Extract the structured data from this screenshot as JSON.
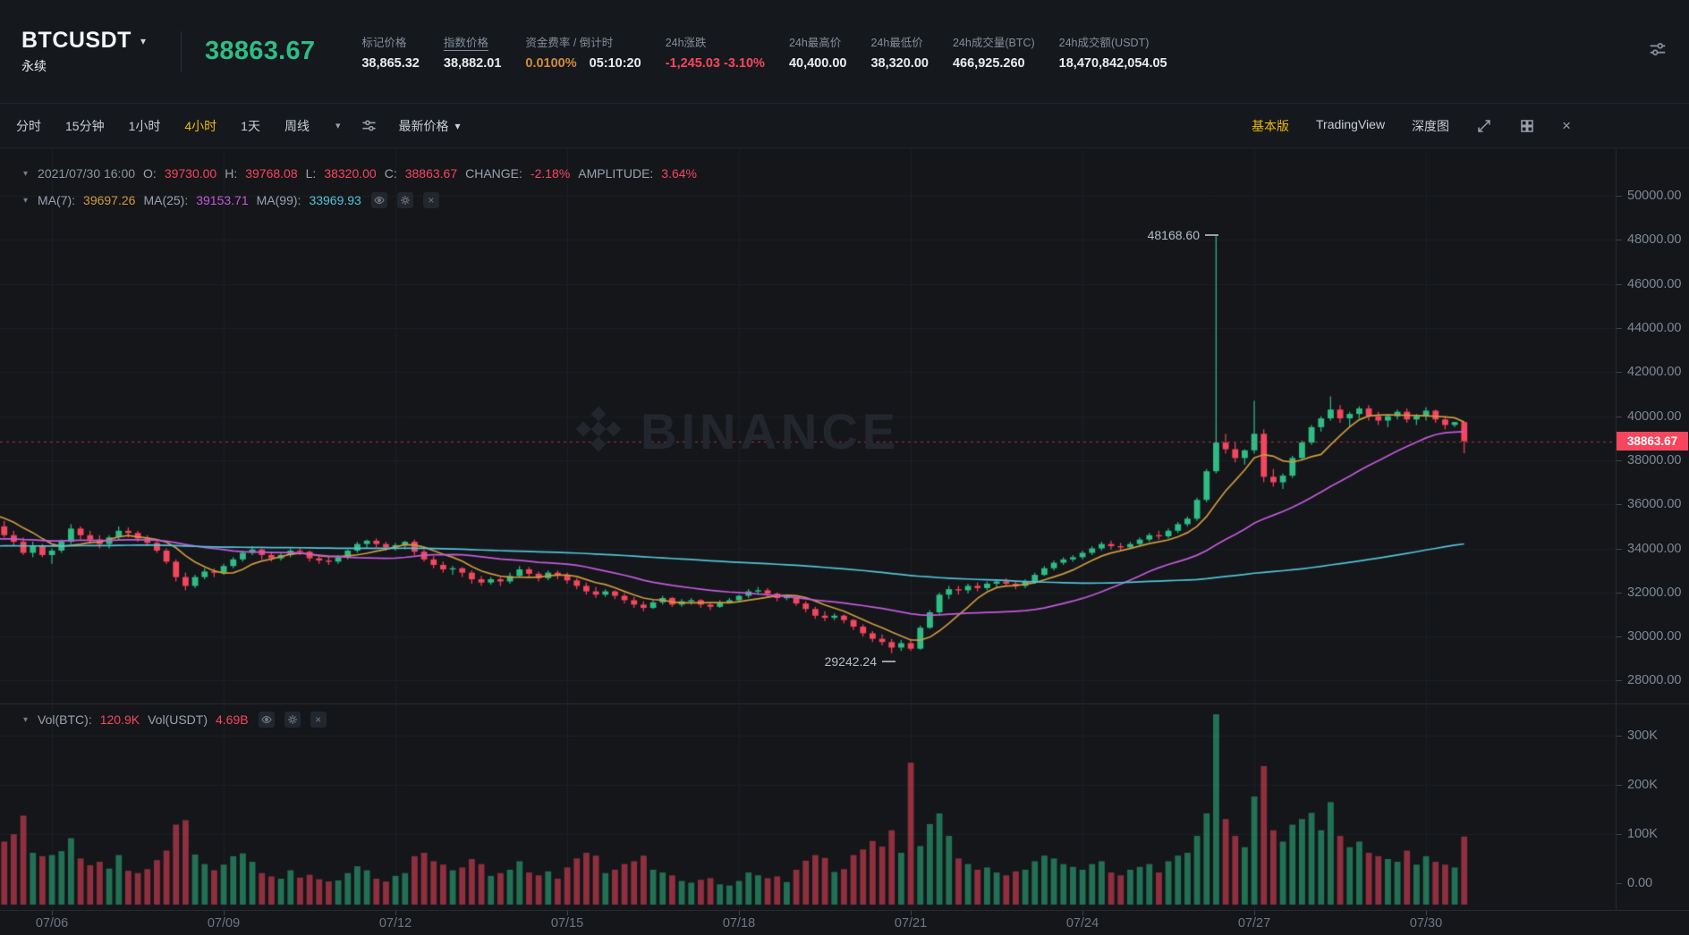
{
  "header": {
    "symbol": "BTCUSDT",
    "contract_type": "永续",
    "last_price": "38863.67",
    "stats": [
      {
        "label": "标记价格",
        "values": [
          {
            "t": "38,865.32",
            "c": "white"
          }
        ]
      },
      {
        "label": "指数价格",
        "underline": true,
        "values": [
          {
            "t": "38,882.01",
            "c": "white"
          }
        ]
      },
      {
        "label": "资金费率 / 倒计时",
        "values": [
          {
            "t": "0.0100%",
            "c": "orange"
          },
          {
            "t": "05:10:20",
            "c": "white"
          }
        ]
      },
      {
        "label": "24h涨跌",
        "values": [
          {
            "t": "-1,245.03 -3.10%",
            "c": "red"
          }
        ]
      },
      {
        "label": "24h最高价",
        "values": [
          {
            "t": "40,400.00",
            "c": "white"
          }
        ]
      },
      {
        "label": "24h最低价",
        "values": [
          {
            "t": "38,320.00",
            "c": "white"
          }
        ]
      },
      {
        "label": "24h成交量(BTC)",
        "values": [
          {
            "t": "466,925.260",
            "c": "white"
          }
        ]
      },
      {
        "label": "24h成交额(USDT)",
        "values": [
          {
            "t": "18,470,842,054.05",
            "c": "white"
          }
        ]
      }
    ]
  },
  "toolbar": {
    "intervals": [
      {
        "label": "分时"
      },
      {
        "label": "15分钟"
      },
      {
        "label": "1小时"
      },
      {
        "label": "4小时",
        "selected": true
      },
      {
        "label": "1天"
      },
      {
        "label": "周线"
      }
    ],
    "price_type": "最新价格",
    "views": [
      {
        "label": "基本版",
        "selected": true
      },
      {
        "label": "TradingView"
      },
      {
        "label": "深度图"
      }
    ]
  },
  "legend": {
    "ohlc": {
      "date": "2021/07/30 16:00",
      "o_label": "O:",
      "o": "39730.00",
      "h_label": "H:",
      "h": "39768.08",
      "l_label": "L:",
      "l": "38320.00",
      "c_label": "C:",
      "c": "38863.67",
      "change_label": "CHANGE:",
      "change": "-2.18%",
      "amplitude_label": "AMPLITUDE:",
      "amplitude": "3.64%"
    },
    "ma": {
      "ma7_label": "MA(7):",
      "ma7": "39697.26",
      "ma25_label": "MA(25):",
      "ma25": "39153.71",
      "ma99_label": "MA(99):",
      "ma99": "33969.93"
    },
    "vol": {
      "btc_label": "Vol(BTC):",
      "btc": "120.9K",
      "usdt_label": "Vol(USDT)",
      "usdt": "4.69B"
    }
  },
  "watermark": {
    "text": "BINANCE"
  },
  "chart_data": {
    "type": "candlestick",
    "interval": "4h",
    "start_time": "2021/07/05 00:00",
    "title": "BTCUSDT Perpetual 4h",
    "ylim": [
      28000,
      50000
    ],
    "price_ticks": [
      {
        "v": 50000,
        "label": "50000.00"
      },
      {
        "v": 48000,
        "label": "48000.00"
      },
      {
        "v": 46000,
        "label": "46000.00"
      },
      {
        "v": 44000,
        "label": "44000.00"
      },
      {
        "v": 42000,
        "label": "42000.00"
      },
      {
        "v": 40000,
        "label": "40000.00"
      },
      {
        "v": 38000,
        "label": "38000.00"
      },
      {
        "v": 36000,
        "label": "36000.00"
      },
      {
        "v": 34000,
        "label": "34000.00"
      },
      {
        "v": 32000,
        "label": "32000.00"
      },
      {
        "v": 30000,
        "label": "30000.00"
      },
      {
        "v": 28000,
        "label": "28000.00"
      }
    ],
    "vol_ticks": [
      {
        "v": 300,
        "label": "300K"
      },
      {
        "v": 200,
        "label": "200K"
      },
      {
        "v": 100,
        "label": "100K"
      },
      {
        "v": 0,
        "label": "0.00"
      }
    ],
    "time_ticks": [
      "07/06",
      "07/09",
      "07/12",
      "07/15",
      "07/18",
      "07/21",
      "07/24",
      "07/27",
      "07/30"
    ],
    "current_price": 38863.67,
    "current_price_label": "38863.67",
    "high_annotation": {
      "price": 48168.6,
      "label": "48168.60"
    },
    "low_annotation": {
      "price": 29242.24,
      "label": "29242.24"
    },
    "ma_periods": [
      7,
      25,
      99
    ],
    "ma_seeds": [
      35600,
      34400,
      34100
    ],
    "candles": [
      [
        35400,
        35600,
        34900,
        35000,
        95
      ],
      [
        35000,
        35250,
        34500,
        34600,
        112
      ],
      [
        34600,
        34800,
        34100,
        34300,
        125
      ],
      [
        34300,
        34500,
        33700,
        33800,
        158
      ],
      [
        33800,
        34300,
        33600,
        34100,
        92
      ],
      [
        34100,
        34200,
        33600,
        33700,
        86
      ],
      [
        33700,
        34000,
        33300,
        33900,
        88
      ],
      [
        33900,
        34400,
        33800,
        34300,
        95
      ],
      [
        34300,
        35100,
        34200,
        34900,
        118
      ],
      [
        34900,
        35000,
        34400,
        34600,
        82
      ],
      [
        34600,
        34800,
        34200,
        34400,
        70
      ],
      [
        34400,
        34600,
        34000,
        34200,
        76
      ],
      [
        34200,
        34600,
        34000,
        34500,
        64
      ],
      [
        34500,
        35000,
        34400,
        34800,
        88
      ],
      [
        34800,
        34950,
        34500,
        34700,
        60
      ],
      [
        34700,
        34800,
        34300,
        34450,
        56
      ],
      [
        34450,
        34600,
        34100,
        34250,
        63
      ],
      [
        34250,
        34400,
        33800,
        33900,
        79
      ],
      [
        33900,
        34000,
        33300,
        33400,
        96
      ],
      [
        33400,
        33500,
        32500,
        32700,
        142
      ],
      [
        32700,
        32900,
        32100,
        32300,
        150
      ],
      [
        32300,
        32800,
        32200,
        32700,
        89
      ],
      [
        32700,
        33100,
        32600,
        32950,
        72
      ],
      [
        32950,
        33100,
        32700,
        32900,
        61
      ],
      [
        32900,
        33300,
        32800,
        33200,
        71
      ],
      [
        33200,
        33600,
        33100,
        33500,
        86
      ],
      [
        33500,
        33900,
        33400,
        33800,
        91
      ],
      [
        33800,
        34100,
        33700,
        33950,
        76
      ],
      [
        33950,
        34000,
        33500,
        33700,
        56
      ],
      [
        33700,
        33850,
        33400,
        33550,
        50
      ],
      [
        33550,
        33800,
        33450,
        33700,
        46
      ],
      [
        33700,
        34000,
        33600,
        33900,
        61
      ],
      [
        33900,
        34050,
        33700,
        33850,
        48
      ],
      [
        33850,
        33900,
        33400,
        33550,
        53
      ],
      [
        33550,
        33700,
        33300,
        33450,
        45
      ],
      [
        33450,
        33600,
        33250,
        33400,
        41
      ],
      [
        33400,
        33700,
        33300,
        33600,
        43
      ],
      [
        33600,
        33950,
        33500,
        33900,
        56
      ],
      [
        33900,
        34300,
        33800,
        34200,
        68
      ],
      [
        34200,
        34400,
        34000,
        34350,
        61
      ],
      [
        34350,
        34450,
        34050,
        34200,
        46
      ],
      [
        34200,
        34300,
        33900,
        34050,
        41
      ],
      [
        34050,
        34250,
        33900,
        34150,
        51
      ],
      [
        34150,
        34350,
        33950,
        34300,
        56
      ],
      [
        34300,
        34400,
        33700,
        33850,
        86
      ],
      [
        33850,
        33950,
        33400,
        33500,
        92
      ],
      [
        33500,
        33650,
        33100,
        33250,
        77
      ],
      [
        33250,
        33400,
        32900,
        33050,
        71
      ],
      [
        33050,
        33200,
        32800,
        33100,
        61
      ],
      [
        33100,
        33150,
        32700,
        32900,
        66
      ],
      [
        32900,
        33000,
        32400,
        32600,
        81
      ],
      [
        32600,
        32750,
        32300,
        32450,
        72
      ],
      [
        32450,
        32700,
        32350,
        32600,
        51
      ],
      [
        32600,
        32700,
        32300,
        32500,
        56
      ],
      [
        32500,
        32900,
        32400,
        32750,
        62
      ],
      [
        32750,
        33200,
        32700,
        33050,
        77
      ],
      [
        33050,
        33150,
        32700,
        32850,
        57
      ],
      [
        32850,
        32950,
        32500,
        32650,
        52
      ],
      [
        32650,
        33000,
        32550,
        32900,
        59
      ],
      [
        32900,
        33000,
        32600,
        32800,
        46
      ],
      [
        32800,
        32900,
        32400,
        32550,
        66
      ],
      [
        32550,
        32650,
        32150,
        32300,
        82
      ],
      [
        32300,
        32450,
        31900,
        32050,
        92
      ],
      [
        32050,
        32250,
        31750,
        31900,
        87
      ],
      [
        31900,
        32150,
        31800,
        32050,
        56
      ],
      [
        32050,
        32100,
        31700,
        31850,
        62
      ],
      [
        31850,
        31950,
        31500,
        31650,
        72
      ],
      [
        31650,
        31800,
        31300,
        31450,
        77
      ],
      [
        31450,
        31600,
        31150,
        31300,
        87
      ],
      [
        31300,
        31650,
        31250,
        31550,
        62
      ],
      [
        31550,
        31850,
        31450,
        31750,
        57
      ],
      [
        31750,
        31800,
        31350,
        31450,
        52
      ],
      [
        31450,
        31700,
        31350,
        31600,
        42
      ],
      [
        31600,
        31750,
        31450,
        31650,
        39
      ],
      [
        31650,
        31700,
        31300,
        31450,
        44
      ],
      [
        31450,
        31550,
        31200,
        31350,
        47
      ],
      [
        31350,
        31650,
        31300,
        31550,
        36
      ],
      [
        31550,
        31750,
        31500,
        31650,
        34
      ],
      [
        31650,
        31900,
        31550,
        31850,
        42
      ],
      [
        31850,
        32150,
        31750,
        32050,
        57
      ],
      [
        32050,
        32250,
        31900,
        32100,
        52
      ],
      [
        32100,
        32200,
        31800,
        31950,
        47
      ],
      [
        31950,
        32000,
        31600,
        31750,
        50
      ],
      [
        31750,
        31900,
        31650,
        31800,
        40
      ],
      [
        31800,
        31850,
        31400,
        31500,
        62
      ],
      [
        31500,
        31600,
        31100,
        31250,
        78
      ],
      [
        31250,
        31350,
        30800,
        30950,
        88
      ],
      [
        30950,
        31150,
        30700,
        30850,
        83
      ],
      [
        30850,
        31050,
        30750,
        30950,
        58
      ],
      [
        30950,
        31000,
        30600,
        30750,
        63
      ],
      [
        30750,
        30800,
        30300,
        30450,
        88
      ],
      [
        30450,
        30550,
        30000,
        30150,
        98
      ],
      [
        30150,
        30250,
        29750,
        29900,
        113
      ],
      [
        29900,
        30100,
        29600,
        29750,
        103
      ],
      [
        29750,
        29900,
        29242.24,
        29500,
        132
      ],
      [
        29500,
        29850,
        29350,
        29700,
        92
      ],
      [
        29700,
        29900,
        29350,
        29450,
        252
      ],
      [
        29450,
        30500,
        29400,
        30400,
        104
      ],
      [
        30400,
        31200,
        30350,
        31100,
        143
      ],
      [
        31100,
        32000,
        31000,
        31900,
        162
      ],
      [
        31900,
        32300,
        31700,
        32150,
        122
      ],
      [
        32150,
        32300,
        31900,
        32100,
        82
      ],
      [
        32100,
        32400,
        31950,
        32300,
        72
      ],
      [
        32300,
        32450,
        32050,
        32200,
        62
      ],
      [
        32200,
        32500,
        32100,
        32400,
        66
      ],
      [
        32400,
        32600,
        32250,
        32500,
        57
      ],
      [
        32500,
        32650,
        32300,
        32400,
        52
      ],
      [
        32400,
        32500,
        32150,
        32300,
        59
      ],
      [
        32300,
        32600,
        32200,
        32500,
        62
      ],
      [
        32500,
        32900,
        32400,
        32800,
        77
      ],
      [
        32800,
        33200,
        32750,
        33100,
        87
      ],
      [
        33100,
        33450,
        33000,
        33350,
        82
      ],
      [
        33350,
        33600,
        33250,
        33500,
        72
      ],
      [
        33500,
        33700,
        33400,
        33600,
        67
      ],
      [
        33600,
        33900,
        33500,
        33800,
        62
      ],
      [
        33800,
        34100,
        33700,
        34000,
        72
      ],
      [
        34000,
        34300,
        33900,
        34200,
        77
      ],
      [
        34200,
        34350,
        33950,
        34100,
        57
      ],
      [
        34100,
        34250,
        33900,
        34050,
        52
      ],
      [
        34050,
        34300,
        34000,
        34200,
        62
      ],
      [
        34200,
        34500,
        34100,
        34400,
        67
      ],
      [
        34400,
        34700,
        34300,
        34600,
        72
      ],
      [
        34600,
        34800,
        34400,
        34550,
        57
      ],
      [
        34550,
        34900,
        34450,
        34800,
        77
      ],
      [
        34800,
        35200,
        34700,
        35100,
        87
      ],
      [
        35100,
        35450,
        35000,
        35350,
        92
      ],
      [
        35350,
        36300,
        35250,
        36200,
        122
      ],
      [
        36200,
        37600,
        36100,
        37500,
        162
      ],
      [
        37500,
        48168.6,
        37400,
        38800,
        338
      ],
      [
        38800,
        39200,
        38300,
        38500,
        152
      ],
      [
        38500,
        38800,
        37900,
        38100,
        122
      ],
      [
        38100,
        38500,
        37800,
        38450,
        102
      ],
      [
        38450,
        40700,
        38300,
        39200,
        192
      ],
      [
        39200,
        39400,
        37000,
        37250,
        246
      ],
      [
        37250,
        37600,
        36800,
        37000,
        132
      ],
      [
        37000,
        37400,
        36700,
        37300,
        112
      ],
      [
        37300,
        38200,
        37200,
        38100,
        142
      ],
      [
        38100,
        38900,
        38000,
        38800,
        152
      ],
      [
        38800,
        39600,
        38700,
        39500,
        163
      ],
      [
        39500,
        40000,
        39300,
        39900,
        132
      ],
      [
        39900,
        40900,
        39800,
        40300,
        182
      ],
      [
        40300,
        40500,
        39700,
        39900,
        122
      ],
      [
        39900,
        40200,
        39500,
        40100,
        102
      ],
      [
        40100,
        40450,
        39900,
        40350,
        112
      ],
      [
        40350,
        40500,
        39800,
        40000,
        92
      ],
      [
        40000,
        40200,
        39600,
        39800,
        86
      ],
      [
        39800,
        40100,
        39500,
        40000,
        81
      ],
      [
        40000,
        40300,
        39850,
        40200,
        76
      ],
      [
        40200,
        40350,
        39700,
        39850,
        96
      ],
      [
        39850,
        40100,
        39600,
        40000,
        71
      ],
      [
        40000,
        40400,
        39800,
        40250,
        86
      ],
      [
        40250,
        40300,
        39700,
        39850,
        76
      ],
      [
        39850,
        40000,
        39400,
        39600,
        71
      ],
      [
        39600,
        39750,
        39500,
        39730,
        66
      ],
      [
        39730,
        39768.08,
        38320,
        38863.67,
        120.9
      ]
    ]
  },
  "colors": {
    "up": "#2ebd85",
    "down": "#f6465d",
    "accent": "#f0b90b",
    "orange": "#d08a3c",
    "ma7": "#cf9b3f",
    "ma25": "#c45bdd",
    "ma99": "#53c4d9",
    "grid": "#1b1e24",
    "axis_text": "#7f8896",
    "white": "#eaecef",
    "red": "#f6465d"
  }
}
